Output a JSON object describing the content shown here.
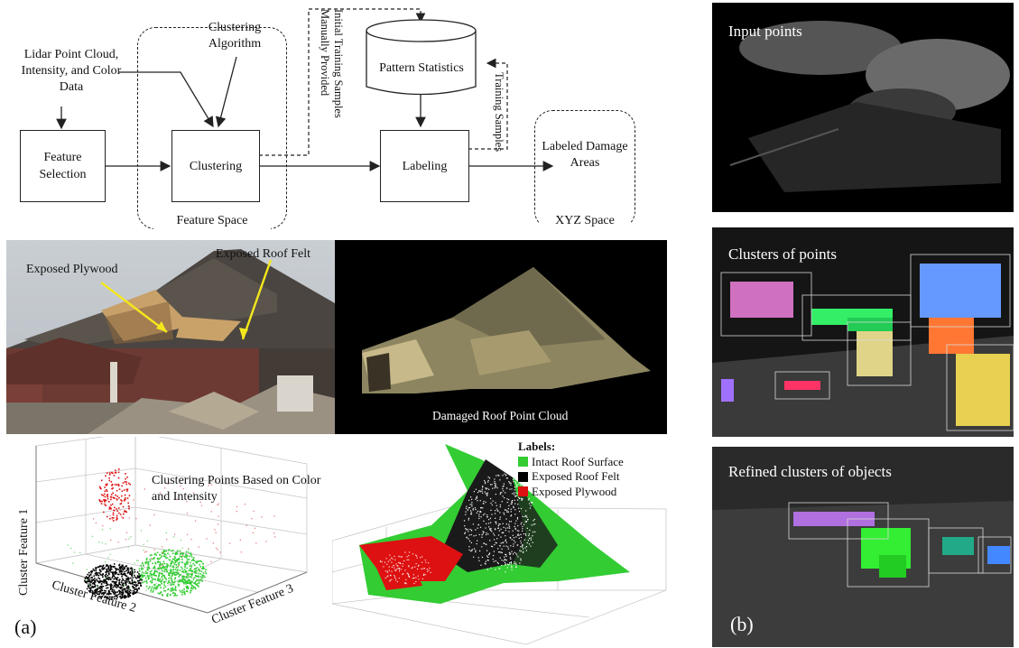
{
  "flowchart": {
    "input_label": "Lidar Point Cloud, Intensity, and Color Data",
    "clustering_algorithm": "Clustering Algorithm",
    "feature_selection": "Feature Selection",
    "clustering": "Clustering",
    "pattern_statistics": "Pattern Statistics",
    "labeling": "Labeling",
    "labeled_output": "Labeled Damage Areas",
    "feature_space": "Feature Space",
    "xyz_space": "XYZ Space",
    "initial_samples": "Initial Training Samples Manually Provided",
    "training_samples": "Training Samples"
  },
  "photos": {
    "exposed_plywood": "Exposed Plywood",
    "exposed_roof_felt": "Exposed Roof Felt",
    "point_cloud_caption": "Damaged Roof Point Cloud"
  },
  "scatter": {
    "annotation": "Clustering Points Based on Color and Intensity",
    "axis1": "Cluster Feature 1",
    "axis2": "Cluster Feature 2",
    "axis3": "Cluster Feature 3"
  },
  "legend": {
    "title": "Labels:",
    "items": [
      {
        "label": "Intact Roof Surface",
        "color": "#33cc33"
      },
      {
        "label": "Exposed Roof Felt",
        "color": "#000000"
      },
      {
        "label": "Exposed Plywood",
        "color": "#dd1111"
      }
    ]
  },
  "panel_a": "(a)",
  "panel_b": "(b)",
  "right_panels": {
    "input_points": "Input points",
    "clusters_of_points": "Clusters of points",
    "refined_clusters": "Refined clusters of objects"
  }
}
